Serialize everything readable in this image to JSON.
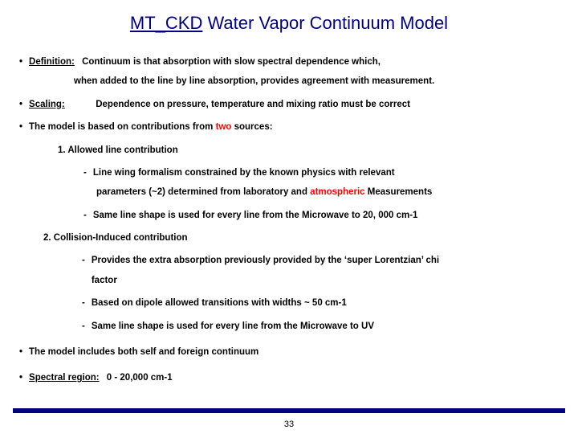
{
  "title": {
    "underlined": "MT_CKD",
    "rest": " Water Vapor Continuum Model"
  },
  "def": {
    "label": "Definition:",
    "line1": "Continuum is that absorption with slow spectral dependence which,",
    "line2": "when added to the line by line absorption, provides agreement with measurement."
  },
  "scaling": {
    "label": "Scaling:",
    "text": "Dependence on pressure, temperature and mixing ratio must be correct"
  },
  "sources": {
    "intro_a": "The model is based on contributions from ",
    "two": "two",
    "intro_b": " sources:",
    "s1": {
      "head": "1.  Allowed line contribution",
      "d1a": "Line wing formalism constrained by the known physics with relevant",
      "d1b_a": "parameters (~2) determined from laboratory and ",
      "d1b_atm": "atmospheric",
      "d1b_b": " Measurements",
      "d2": "Same line shape is used for every line from the Microwave to 20, 000 cm-1"
    },
    "s2": {
      "head": "2.   Collision-Induced contribution",
      "d1a": "Provides the extra absorption previously provided by the ‘super Lorentzian’ chi",
      "d1b": "factor",
      "d2": "Based on dipole allowed transitions with widths  ~ 50 cm-1",
      "d3": "Same line shape is used for every line from the Microwave to UV"
    }
  },
  "selfforeign": "The model includes both self and foreign continuum",
  "spectral": {
    "label": "Spectral region:",
    "text": "0 - 20,000 cm-1"
  },
  "pagenum": "33",
  "colors": {
    "accent": "#000080",
    "highlight": "#ff0000"
  }
}
